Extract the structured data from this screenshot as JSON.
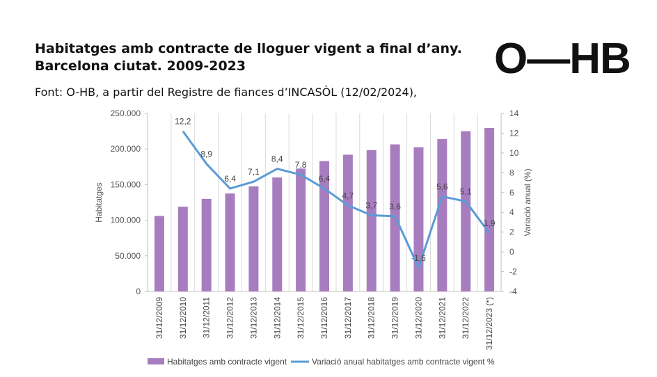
{
  "header": {
    "title_line1": "Habitatges amb contracte de lloguer vigent a final d’any.",
    "title_line2": "Barcelona ciutat. 2009-2023",
    "source": "Font: O-HB, a partir del Registre de fiances d’INCASÒL (12/02/2024),",
    "logo": "O—HB"
  },
  "colors": {
    "bar": "#a77dbf",
    "line": "#5b9bd5",
    "grid": "#d9d9d9",
    "axis": "#bfbfbf"
  },
  "chart_data": {
    "type": "bar+line",
    "categories": [
      "31/12/2009",
      "31/12/2010",
      "31/12/2011",
      "31/12/2012",
      "31/12/2013",
      "31/12/2014",
      "31/12/2015",
      "31/12/2016",
      "31/12/2017",
      "31/12/2018",
      "31/12/2019",
      "31/12/2020",
      "31/12/2021",
      "31/12/2022",
      "31/12/2023 (*)"
    ],
    "series": [
      {
        "name": "Habitatges amb contracte vigent",
        "type": "bar",
        "axis": "left",
        "values": [
          106000,
          119000,
          130000,
          137500,
          147500,
          160000,
          172500,
          183000,
          192000,
          198500,
          206500,
          202500,
          214000,
          225000,
          229500
        ]
      },
      {
        "name": "Variació anual habitatges amb contracte vigent %",
        "type": "line",
        "axis": "right",
        "values": [
          null,
          12.2,
          8.9,
          6.4,
          7.1,
          8.4,
          7.8,
          6.4,
          4.7,
          3.7,
          3.6,
          -1.6,
          5.6,
          5.1,
          1.9
        ],
        "labels": [
          "",
          "12,2",
          "8,9",
          "6,4",
          "7,1",
          "8,4",
          "7,8",
          "6,4",
          "4,7",
          "3,7",
          "3,6",
          "-1,6",
          "5,6",
          "5,1",
          "1,9"
        ]
      }
    ],
    "ylabel": "Habitatges",
    "y2label": "Variació anual (%)",
    "ylim": [
      0,
      250000
    ],
    "y2lim": [
      -4,
      14
    ],
    "yticks": [
      "0",
      "50.000",
      "100.000",
      "150.000",
      "200.000",
      "250.000"
    ],
    "y2ticks": [
      "-4",
      "-2",
      "0",
      "2",
      "4",
      "6",
      "8",
      "10",
      "12",
      "14"
    ],
    "grid": true,
    "legend_position": "bottom"
  }
}
